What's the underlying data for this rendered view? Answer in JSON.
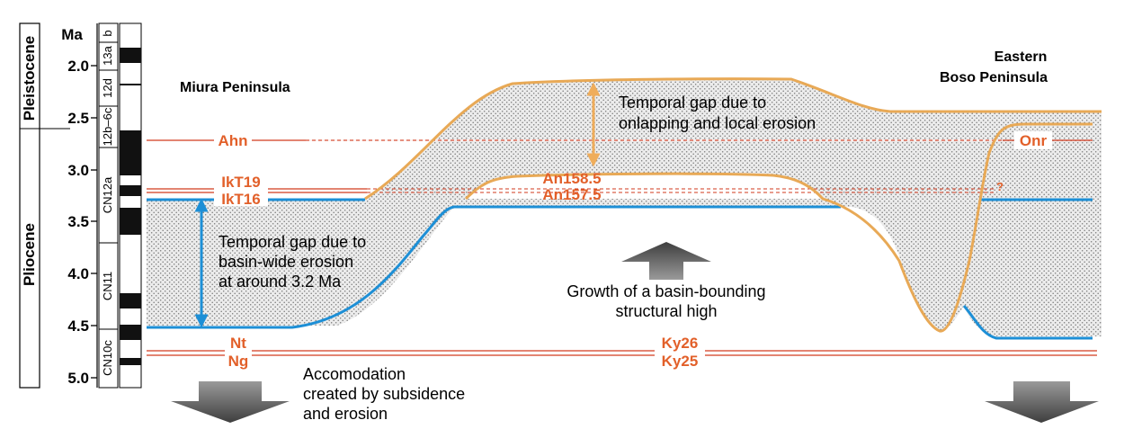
{
  "axis": {
    "unit_label": "Ma",
    "ticks": [
      "2.0",
      "2.5",
      "3.0",
      "3.5",
      "4.0",
      "4.5",
      "5.0"
    ]
  },
  "epochs": [
    "Pleistocene",
    "Pliocene"
  ],
  "nannofossil_zones": [
    "b",
    "13a",
    "12d",
    "12b–6c",
    "CN12a",
    "CN11",
    "CN10c"
  ],
  "localities": {
    "west": "Miura Peninsula",
    "east_line1": "Eastern",
    "east_line2": "Boso Peninsula"
  },
  "horizons": {
    "ahn": "Ahn",
    "ikt19": "IkT19",
    "ikt16": "IkT16",
    "an158": "An158.5",
    "an157": "An157.5",
    "onr": "Onr",
    "question": "?",
    "nt": "Nt",
    "ng": "Ng",
    "ky26": "Ky26",
    "ky25": "Ky25"
  },
  "annotations": {
    "gap_onlap_line1": "Temporal gap due to",
    "gap_onlap_line2": "onlapping and local erosion",
    "gap_basin_line1": "Temporal gap due to",
    "gap_basin_line2": "basin-wide erosion",
    "gap_basin_line3": "at around 3.2 Ma",
    "growth_line1": "Growth of a basin-bounding",
    "growth_line2": "structural high",
    "accom_line1": "Accomodation",
    "accom_line2": "created by subsidence",
    "accom_line3": "and erosion"
  },
  "colors": {
    "horizon_red": "#d23a1e",
    "label_orange": "#e2602a",
    "unconformity_blue": "#1d8fd6",
    "upper_surface_tan": "#e8a956",
    "arrow_orange": "#efad5b",
    "arrow_blue": "#1d8fd6",
    "hatch_fill": "#e4e4e4",
    "grey_arrow": "#5a5a5a"
  }
}
